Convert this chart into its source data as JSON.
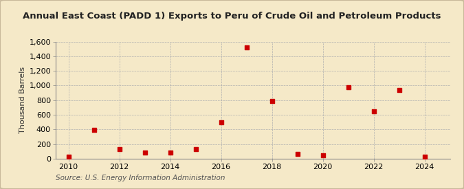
{
  "title": "Annual East Coast (PADD 1) Exports to Peru of Crude Oil and Petroleum Products",
  "ylabel": "Thousand Barrels",
  "source": "Source: U.S. Energy Information Administration",
  "background_color": "#f5e9c8",
  "plot_bg_color": "#f5e9c8",
  "marker_color": "#cc0000",
  "years": [
    2010,
    2011,
    2012,
    2013,
    2014,
    2015,
    2016,
    2017,
    2018,
    2019,
    2020,
    2021,
    2022,
    2023,
    2024
  ],
  "values": [
    30,
    390,
    130,
    80,
    80,
    130,
    500,
    1520,
    790,
    70,
    50,
    980,
    650,
    940,
    30
  ],
  "xlim": [
    2009.5,
    2025.0
  ],
  "ylim": [
    0,
    1600
  ],
  "yticks": [
    0,
    200,
    400,
    600,
    800,
    1000,
    1200,
    1400,
    1600
  ],
  "xticks": [
    2010,
    2012,
    2014,
    2016,
    2018,
    2020,
    2022,
    2024
  ],
  "grid_color": "#b0b0b0",
  "title_fontsize": 9.5,
  "axis_fontsize": 8,
  "ylabel_fontsize": 8,
  "source_fontsize": 7.5
}
